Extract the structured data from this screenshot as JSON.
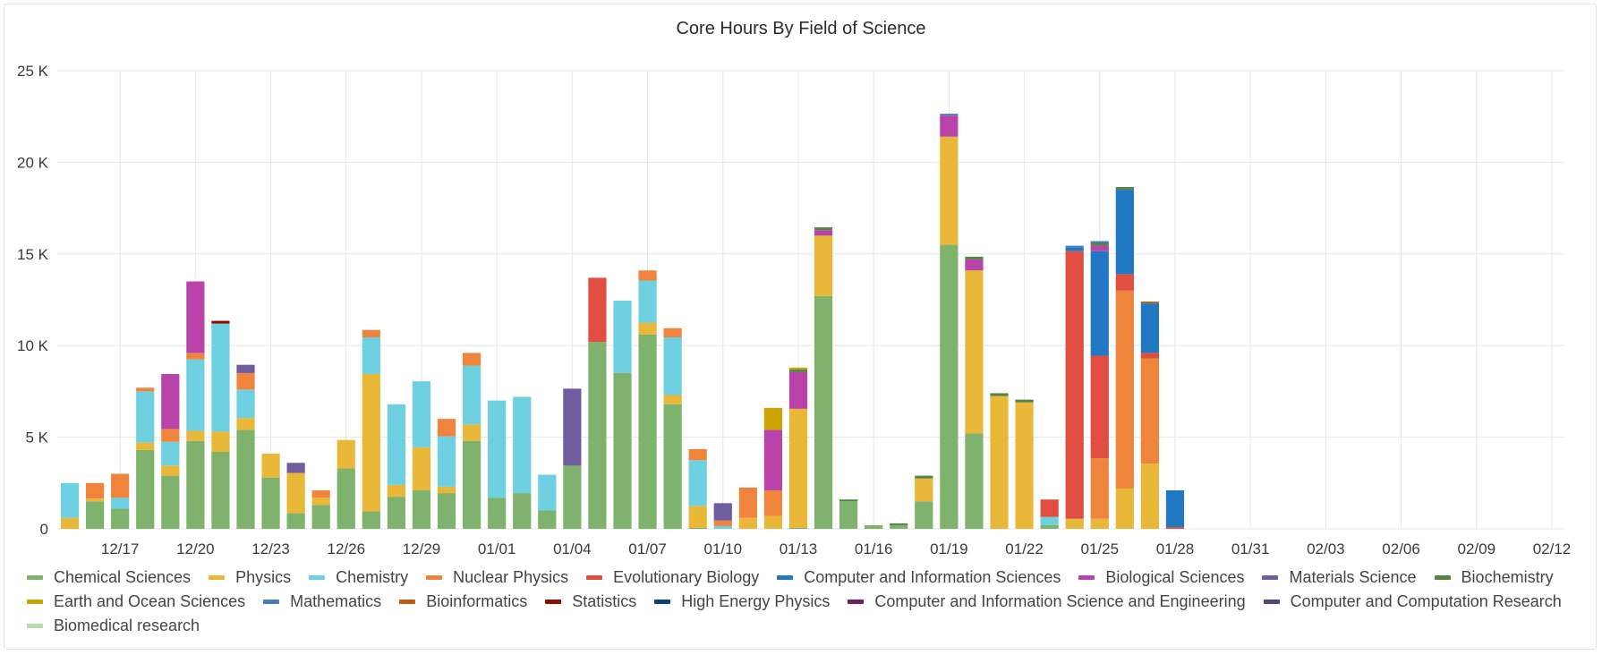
{
  "panel": {
    "title": "Core Hours By Field of Science"
  },
  "chart_data": {
    "type": "bar",
    "stacked": true,
    "title": "Core Hours By Field of Science",
    "xlabel": "",
    "ylabel": "",
    "ylim": [
      0,
      25000
    ],
    "y_ticks": [
      0,
      5000,
      10000,
      15000,
      20000,
      25000
    ],
    "y_tick_labels": [
      "0",
      "5 K",
      "10 K",
      "15 K",
      "20 K",
      "25 K"
    ],
    "x_tick_labels": [
      "12/17",
      "12/20",
      "12/23",
      "12/26",
      "12/29",
      "01/01",
      "01/04",
      "01/07",
      "01/10",
      "01/13",
      "01/16",
      "01/19",
      "01/22",
      "01/25",
      "01/28",
      "01/31",
      "02/03",
      "02/06",
      "02/09",
      "02/12"
    ],
    "categories": [
      "12/15",
      "12/16",
      "12/17",
      "12/18",
      "12/19",
      "12/20",
      "12/21",
      "12/22",
      "12/23",
      "12/24",
      "12/25",
      "12/26",
      "12/27",
      "12/28",
      "12/29",
      "12/30",
      "12/31",
      "01/01",
      "01/02",
      "01/03",
      "01/04",
      "01/05",
      "01/06",
      "01/07",
      "01/08",
      "01/09",
      "01/10",
      "01/11",
      "01/12",
      "01/13",
      "01/14",
      "01/15",
      "01/16",
      "01/17",
      "01/18",
      "01/19",
      "01/20",
      "01/21",
      "01/22",
      "01/23",
      "01/24",
      "01/25",
      "01/26",
      "01/27",
      "01/28",
      "01/29",
      "01/30",
      "01/31",
      "02/01",
      "02/02",
      "02/03",
      "02/04",
      "02/05",
      "02/06",
      "02/07",
      "02/08",
      "02/09",
      "02/10",
      "02/11",
      "02/12"
    ],
    "grid": true,
    "legend_position": "bottom",
    "series": [
      {
        "name": "Chemical Sciences",
        "color": "#7eb26d",
        "values": [
          0,
          1500,
          1100,
          4300,
          2900,
          4800,
          4200,
          5400,
          2800,
          850,
          1300,
          3300,
          950,
          1750,
          2100,
          1950,
          4800,
          1700,
          1950,
          1000,
          3450,
          10200,
          8500,
          10600,
          6800,
          50,
          0,
          0,
          0,
          50,
          12700,
          1500,
          200,
          200,
          1500,
          15500,
          5200,
          0,
          0,
          200,
          0,
          0,
          0,
          0,
          0,
          0,
          0,
          0,
          0,
          0,
          0,
          0,
          0,
          0,
          0,
          0,
          0,
          0,
          0,
          0
        ]
      },
      {
        "name": "Physics",
        "color": "#eab839",
        "values": [
          600,
          150,
          0,
          400,
          550,
          550,
          1100,
          650,
          1300,
          2200,
          400,
          1550,
          7500,
          650,
          2350,
          350,
          900,
          0,
          0,
          0,
          0,
          0,
          0,
          650,
          500,
          1200,
          0,
          600,
          700,
          6500,
          3300,
          0,
          0,
          0,
          1250,
          5900,
          8900,
          7250,
          6900,
          0,
          550,
          550,
          2200,
          3550,
          0,
          0,
          0,
          0,
          0,
          0,
          0,
          0,
          0,
          0,
          0,
          0,
          0,
          0,
          0,
          0
        ]
      },
      {
        "name": "Chemistry",
        "color": "#6ed0e0",
        "values": [
          1900,
          0,
          600,
          2800,
          1300,
          3900,
          5900,
          1550,
          0,
          0,
          0,
          0,
          2000,
          4400,
          3600,
          2750,
          3200,
          5300,
          5250,
          1950,
          0,
          0,
          3950,
          2300,
          3150,
          2500,
          150,
          0,
          0,
          0,
          0,
          0,
          0,
          0,
          0,
          0,
          0,
          0,
          0,
          450,
          0,
          0,
          0,
          0,
          0,
          0,
          0,
          0,
          0,
          0,
          0,
          0,
          0,
          0,
          0,
          0,
          0,
          0,
          0,
          0
        ]
      },
      {
        "name": "Nuclear Physics",
        "color": "#ef843c",
        "values": [
          0,
          850,
          1300,
          200,
          700,
          350,
          0,
          900,
          0,
          0,
          400,
          0,
          400,
          0,
          0,
          950,
          700,
          0,
          0,
          0,
          0,
          0,
          0,
          550,
          500,
          600,
          300,
          1650,
          1400,
          0,
          0,
          0,
          0,
          0,
          0,
          0,
          0,
          0,
          0,
          0,
          0,
          3300,
          10800,
          5750,
          0,
          0,
          0,
          0,
          0,
          0,
          0,
          0,
          0,
          0,
          0,
          0,
          0,
          0,
          0,
          0
        ]
      },
      {
        "name": "Evolutionary Biology",
        "color": "#e24d42",
        "values": [
          0,
          0,
          0,
          0,
          0,
          0,
          0,
          0,
          0,
          0,
          0,
          0,
          0,
          0,
          0,
          0,
          0,
          0,
          0,
          0,
          0,
          3500,
          0,
          0,
          0,
          0,
          0,
          0,
          0,
          0,
          0,
          0,
          0,
          0,
          0,
          0,
          0,
          0,
          0,
          950,
          14600,
          5600,
          900,
          300,
          100,
          0,
          0,
          0,
          0,
          0,
          0,
          0,
          0,
          0,
          0,
          0,
          0,
          0,
          0,
          0
        ]
      },
      {
        "name": "Computer and Information Sciences",
        "color": "#1f78c1",
        "values": [
          0,
          0,
          0,
          0,
          0,
          0,
          0,
          0,
          0,
          0,
          0,
          0,
          0,
          0,
          0,
          0,
          0,
          0,
          0,
          0,
          0,
          0,
          0,
          0,
          0,
          0,
          0,
          0,
          0,
          0,
          0,
          0,
          0,
          0,
          0,
          0,
          0,
          0,
          0,
          0,
          200,
          5700,
          4600,
          2700,
          2000,
          0,
          0,
          0,
          0,
          0,
          0,
          0,
          0,
          0,
          0,
          0,
          0,
          0,
          0,
          0
        ]
      },
      {
        "name": "Biological Sciences",
        "color": "#ba43a9",
        "values": [
          0,
          0,
          0,
          0,
          3000,
          3900,
          0,
          0,
          0,
          0,
          0,
          0,
          0,
          0,
          0,
          0,
          0,
          0,
          0,
          0,
          0,
          0,
          0,
          0,
          0,
          0,
          0,
          0,
          3300,
          2000,
          300,
          0,
          0,
          0,
          0,
          1150,
          600,
          0,
          0,
          0,
          0,
          300,
          0,
          0,
          0,
          0,
          0,
          0,
          0,
          0,
          0,
          0,
          0,
          0,
          0,
          0,
          0,
          0,
          0,
          0
        ]
      },
      {
        "name": "Materials Science",
        "color": "#705da0",
        "values": [
          0,
          0,
          0,
          0,
          0,
          0,
          0,
          450,
          0,
          550,
          0,
          0,
          0,
          0,
          0,
          0,
          0,
          0,
          0,
          0,
          4200,
          0,
          0,
          0,
          0,
          0,
          950,
          0,
          0,
          0,
          0,
          0,
          0,
          0,
          0,
          0,
          0,
          0,
          0,
          0,
          0,
          0,
          0,
          0,
          0,
          0,
          0,
          0,
          0,
          0,
          0,
          0,
          0,
          0,
          0,
          0,
          0,
          0,
          0,
          0
        ]
      },
      {
        "name": "Biochemistry",
        "color": "#508642",
        "values": [
          0,
          0,
          0,
          0,
          0,
          0,
          0,
          0,
          0,
          0,
          0,
          0,
          0,
          0,
          0,
          0,
          0,
          0,
          0,
          0,
          0,
          0,
          0,
          0,
          0,
          0,
          0,
          0,
          0,
          150,
          150,
          100,
          0,
          100,
          150,
          0,
          150,
          150,
          150,
          0,
          0,
          150,
          150,
          0,
          0,
          0,
          0,
          0,
          0,
          0,
          0,
          0,
          0,
          0,
          0,
          0,
          0,
          0,
          0,
          0
        ]
      },
      {
        "name": "Earth and Ocean Sciences",
        "color": "#cca300",
        "values": [
          0,
          0,
          0,
          0,
          0,
          0,
          0,
          0,
          0,
          0,
          0,
          0,
          0,
          0,
          0,
          0,
          0,
          0,
          0,
          0,
          0,
          0,
          0,
          0,
          0,
          0,
          0,
          0,
          1200,
          100,
          0,
          0,
          0,
          0,
          0,
          0,
          0,
          0,
          0,
          0,
          0,
          0,
          0,
          0,
          0,
          0,
          0,
          0,
          0,
          0,
          0,
          0,
          0,
          0,
          0,
          0,
          0,
          0,
          0,
          0
        ]
      },
      {
        "name": "Mathematics",
        "color": "#447ebc",
        "values": [
          0,
          0,
          0,
          0,
          0,
          0,
          0,
          0,
          0,
          0,
          0,
          0,
          0,
          0,
          0,
          0,
          0,
          0,
          0,
          0,
          0,
          0,
          0,
          0,
          0,
          0,
          0,
          0,
          0,
          0,
          0,
          0,
          0,
          0,
          0,
          100,
          0,
          0,
          0,
          0,
          100,
          100,
          0,
          0,
          0,
          0,
          0,
          0,
          0,
          0,
          0,
          0,
          0,
          0,
          0,
          0,
          0,
          0,
          0,
          0
        ]
      },
      {
        "name": "Bioinformatics",
        "color": "#c15c17",
        "values": [
          0,
          0,
          0,
          0,
          0,
          0,
          0,
          0,
          0,
          0,
          0,
          0,
          0,
          0,
          0,
          0,
          0,
          0,
          0,
          0,
          0,
          0,
          0,
          0,
          0,
          0,
          0,
          0,
          0,
          0,
          0,
          0,
          0,
          0,
          0,
          0,
          0,
          0,
          0,
          0,
          0,
          0,
          0,
          100,
          0,
          0,
          0,
          0,
          0,
          0,
          0,
          0,
          0,
          0,
          0,
          0,
          0,
          0,
          0,
          0
        ]
      },
      {
        "name": "Statistics",
        "color": "#890f02",
        "values": [
          0,
          0,
          0,
          0,
          0,
          0,
          150,
          0,
          0,
          0,
          0,
          0,
          0,
          0,
          0,
          0,
          0,
          0,
          0,
          0,
          0,
          0,
          0,
          0,
          0,
          0,
          0,
          0,
          0,
          0,
          0,
          0,
          0,
          0,
          0,
          0,
          0,
          0,
          0,
          0,
          0,
          0,
          0,
          0,
          0,
          0,
          0,
          0,
          0,
          0,
          0,
          0,
          0,
          0,
          0,
          0,
          0,
          0,
          0,
          0
        ]
      },
      {
        "name": "High Energy Physics",
        "color": "#0a437c",
        "values": [
          0,
          0,
          0,
          0,
          0,
          0,
          0,
          0,
          0,
          0,
          0,
          0,
          0,
          0,
          0,
          0,
          0,
          0,
          0,
          0,
          0,
          0,
          0,
          0,
          0,
          0,
          0,
          0,
          0,
          0,
          0,
          0,
          0,
          0,
          0,
          0,
          0,
          0,
          0,
          0,
          0,
          0,
          0,
          0,
          0,
          0,
          0,
          0,
          0,
          0,
          0,
          0,
          0,
          0,
          0,
          0,
          0,
          0,
          0,
          0
        ]
      },
      {
        "name": "Computer and Information Science and Engineering",
        "color": "#6d1f62",
        "values": [
          0,
          0,
          0,
          0,
          0,
          0,
          0,
          0,
          0,
          0,
          0,
          0,
          0,
          0,
          0,
          0,
          0,
          0,
          0,
          0,
          0,
          0,
          0,
          0,
          0,
          0,
          0,
          0,
          0,
          0,
          0,
          0,
          0,
          0,
          0,
          0,
          0,
          0,
          0,
          0,
          0,
          0,
          0,
          0,
          0,
          0,
          0,
          0,
          0,
          0,
          0,
          0,
          0,
          0,
          0,
          0,
          0,
          0,
          0,
          0
        ]
      },
      {
        "name": "Computer and Computation Research",
        "color": "#584477",
        "values": [
          0,
          0,
          0,
          0,
          0,
          0,
          0,
          0,
          0,
          0,
          0,
          0,
          0,
          0,
          0,
          0,
          0,
          0,
          0,
          0,
          0,
          0,
          0,
          0,
          0,
          0,
          0,
          0,
          0,
          0,
          0,
          0,
          0,
          0,
          0,
          0,
          0,
          0,
          0,
          0,
          0,
          0,
          0,
          0,
          0,
          0,
          0,
          0,
          0,
          0,
          0,
          0,
          0,
          0,
          0,
          0,
          0,
          0,
          0,
          0
        ]
      },
      {
        "name": "Biomedical research",
        "color": "#b7dbab",
        "values": [
          0,
          0,
          0,
          0,
          0,
          0,
          0,
          0,
          0,
          0,
          0,
          0,
          0,
          0,
          0,
          0,
          0,
          0,
          0,
          0,
          0,
          0,
          0,
          0,
          0,
          0,
          0,
          0,
          0,
          0,
          0,
          0,
          0,
          0,
          0,
          0,
          0,
          0,
          0,
          0,
          0,
          0,
          0,
          0,
          0,
          0,
          0,
          0,
          0,
          0,
          0,
          0,
          0,
          0,
          0,
          0,
          0,
          0,
          0,
          0
        ]
      }
    ]
  }
}
